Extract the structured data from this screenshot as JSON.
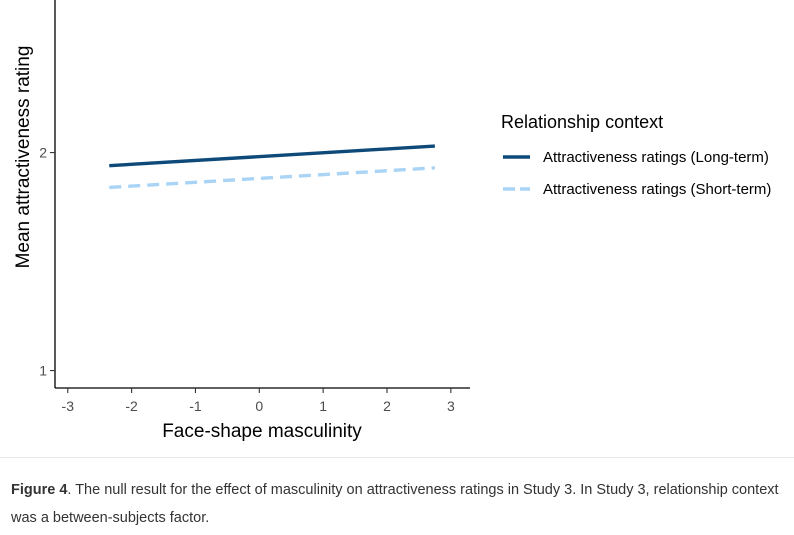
{
  "chart_data": {
    "type": "line",
    "xlabel": "Face-shape masculinity",
    "ylabel": "Mean attractiveness rating",
    "xlim": [
      -3.2,
      3.3
    ],
    "ylim": [
      0.92,
      2.7
    ],
    "x_ticks": [
      -3,
      -2,
      -1,
      0,
      1,
      2,
      3
    ],
    "y_ticks": [
      1,
      2
    ],
    "legend_title": "Relationship context",
    "legend_position": "right",
    "series": [
      {
        "name": "Attractiveness ratings (Long-term)",
        "x": [
          -2.35,
          2.75
        ],
        "y": [
          1.94,
          2.03
        ],
        "color": "#0d4a7a",
        "dash": "solid"
      },
      {
        "name": "Attractiveness ratings (Short-term)",
        "x": [
          -2.35,
          2.75
        ],
        "y": [
          1.84,
          1.93
        ],
        "color": "#a9d4f5",
        "dash": "dashed"
      }
    ]
  },
  "caption": {
    "label": "Figure 4",
    "text": ". The null result for the effect of masculinity on attractiveness ratings in Study 3. In Study 3, relationship context was a between-subjects factor."
  }
}
